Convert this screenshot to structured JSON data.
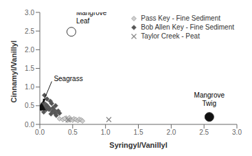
{
  "chart_data": {
    "type": "scatter",
    "xlabel": "Syringyl/Vanillyl",
    "ylabel": "Cinnamyl/Vanillyl",
    "xlim": [
      0,
      3
    ],
    "ylim": [
      0,
      3
    ],
    "xticks": [
      {
        "value": 0,
        "label": "0.0"
      },
      0.5,
      {
        "value": 1,
        "label": "1.0"
      },
      1.5,
      {
        "value": 2,
        "label": "2.0"
      },
      2.5,
      {
        "value": 3,
        "label": "3.0"
      }
    ],
    "yticks": [
      {
        "value": 0,
        "label": "0.0"
      },
      0.5,
      {
        "value": 1,
        "label": "1.0"
      },
      1.5,
      {
        "value": 2,
        "label": "2.0"
      },
      2.5,
      {
        "value": 3,
        "label": "3.0"
      }
    ],
    "grid": false,
    "legend": "upper right",
    "series": [
      {
        "name": "Pass Key - Fine Sediment",
        "color": "#d0d0d0",
        "marker": "diamond",
        "x": [
          0.3,
          0.35,
          0.4,
          0.43,
          0.47,
          0.5,
          0.52,
          0.55,
          0.58,
          0.6,
          0.63,
          0.65,
          0.45,
          0.38,
          0.42
        ],
        "y": [
          0.15,
          0.13,
          0.17,
          0.12,
          0.14,
          0.11,
          0.15,
          0.13,
          0.1,
          0.14,
          0.12,
          0.09,
          0.18,
          0.16,
          0.11
        ]
      },
      {
        "name": "Bob Allen Key - Fine Sediment",
        "color": "#555555",
        "marker": "diamond",
        "x": [
          0.02,
          0.04,
          0.06,
          0.08,
          0.1,
          0.12,
          0.14,
          0.16,
          0.18,
          0.2,
          0.22,
          0.24,
          0.26,
          0.28,
          0.3,
          0.07,
          0.11,
          0.15,
          0.19,
          0.23,
          0.06,
          0.1,
          0.17,
          0.25
        ],
        "y": [
          0.42,
          0.5,
          0.58,
          0.45,
          0.52,
          0.48,
          0.4,
          0.62,
          0.56,
          0.44,
          0.38,
          0.5,
          0.33,
          0.36,
          0.3,
          0.78,
          0.68,
          0.42,
          0.35,
          0.3,
          0.33,
          0.4,
          0.28,
          0.24
        ]
      },
      {
        "name": "Taylor Creek - Peat",
        "color": "#888888",
        "marker": "x",
        "x": [
          0.43,
          1.05
        ],
        "y": [
          0.12,
          0.13
        ]
      }
    ],
    "annotations": [
      {
        "text": "Mangrove\nLeaf",
        "x": 0.48,
        "y": 2.48,
        "color": "#ffffff",
        "marker": "circle"
      },
      {
        "text": "Mangrove\nTwig",
        "x": 2.58,
        "y": 0.2,
        "color": "#111111",
        "marker": "circle"
      },
      {
        "text": "Seagrass",
        "x": 0.025,
        "y": 0.47,
        "color": "#111111",
        "marker": "triangle"
      }
    ]
  }
}
